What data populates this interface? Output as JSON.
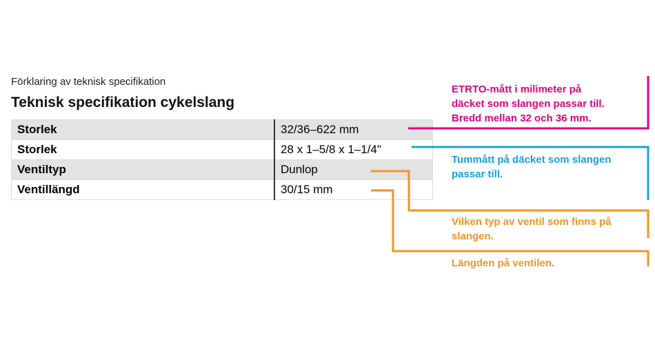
{
  "header": {
    "subtitle": "Förklaring av teknisk specifikation",
    "title": "Teknisk specifikation cykelslang"
  },
  "table": {
    "rows": [
      [
        "Storlek",
        "32/36–622 mm"
      ],
      [
        "Storlek",
        "28 x 1–5/8 x 1–1/4\""
      ],
      [
        "Ventiltyp",
        "Dunlop"
      ],
      [
        "Ventillängd",
        "30/15 mm"
      ]
    ]
  },
  "annotations": [
    {
      "color": "#e5007e",
      "lines": [
        "ETRTO-mått i milimeter på",
        "däcket som slangen passar till.",
        "Bredd mellan 32 och 36 mm."
      ]
    },
    {
      "color": "#1aa0db",
      "lines": [
        "Tummått på däcket som slangen",
        "passar till."
      ]
    },
    {
      "color": "#f39325",
      "lines": [
        "Vilken typ av ventil som finns på",
        "slangen."
      ]
    },
    {
      "color": "#f39325",
      "lines": [
        "Längden på ventilen."
      ]
    }
  ]
}
